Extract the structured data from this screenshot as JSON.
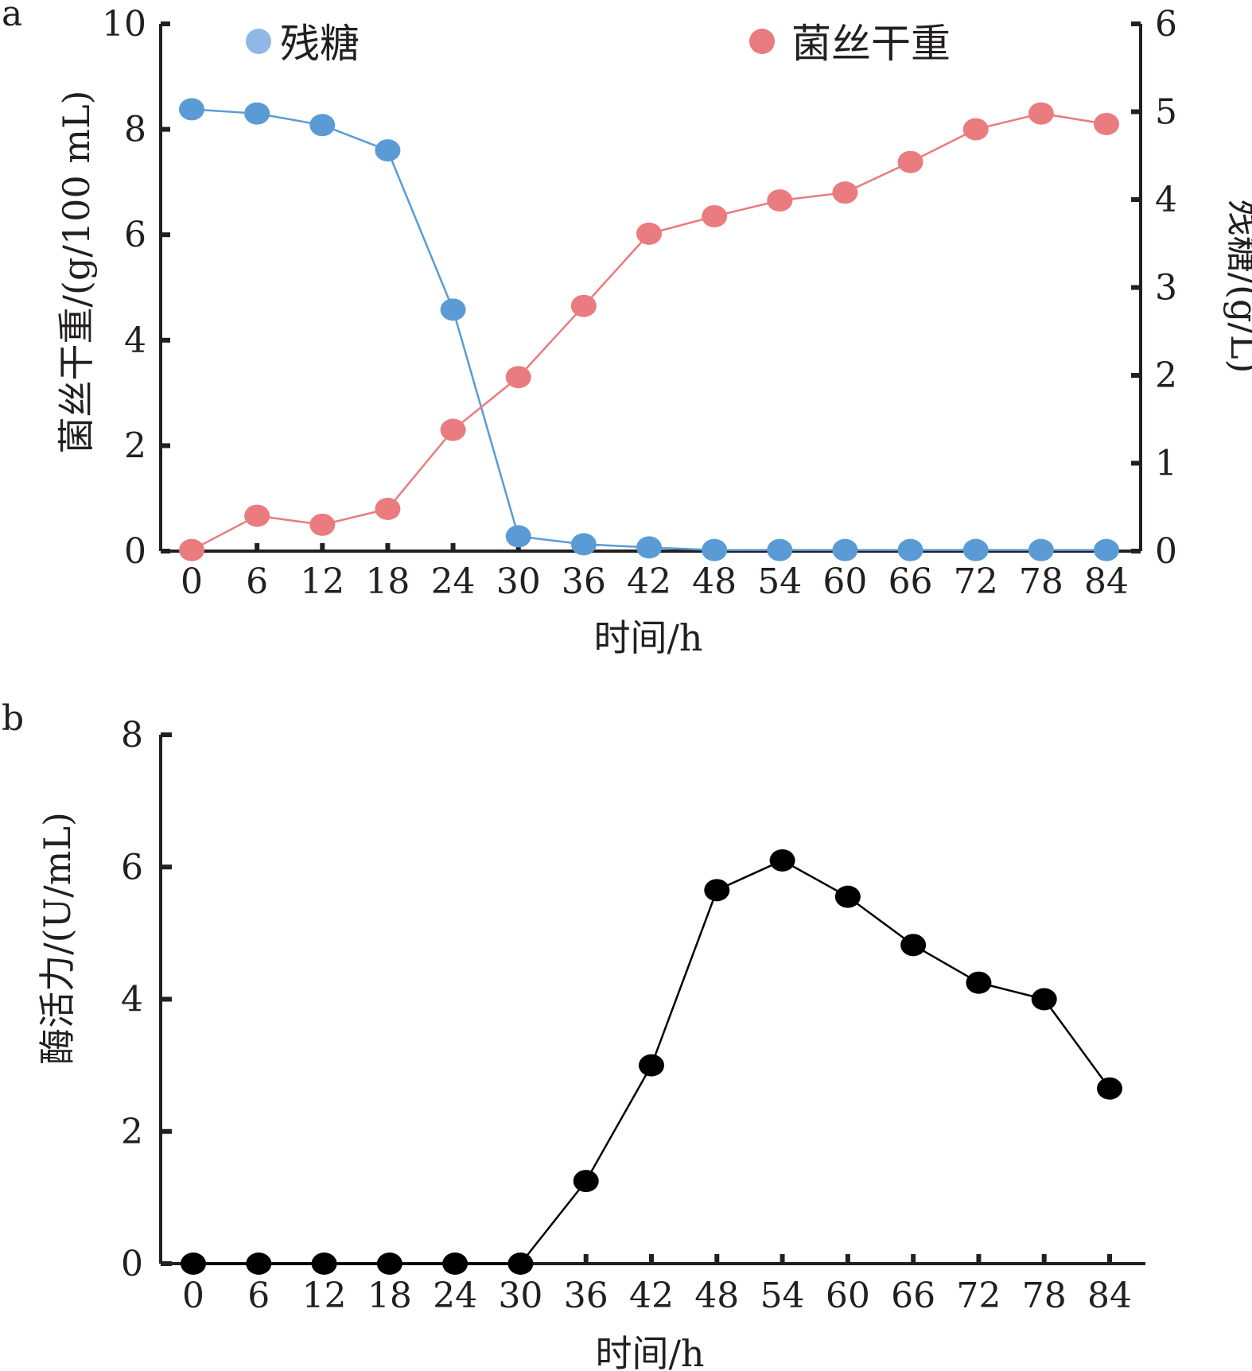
{
  "figure": {
    "panel_a_label": "a",
    "panel_b_label": "b"
  },
  "colors": {
    "sugar": "#5b9bd5",
    "sugar_legend": "#8fb8e6",
    "biomass": "#ea7b7e",
    "activity": "#000000",
    "axis": "#231f20"
  },
  "chart_data": [
    {
      "panel": "a",
      "type": "line",
      "x": [
        0,
        6,
        12,
        18,
        24,
        30,
        36,
        42,
        48,
        54,
        60,
        66,
        72,
        78,
        84
      ],
      "xlabel": "时间/h",
      "xticks": [
        "0",
        "6",
        "12",
        "18",
        "24",
        "30",
        "36",
        "42",
        "48",
        "54",
        "60",
        "66",
        "72",
        "78",
        "84"
      ],
      "ylabel_left": "菌丝干重/(g/100 mL)",
      "ylim_left": [
        0,
        10
      ],
      "yticks_left": [
        "0",
        "2",
        "4",
        "6",
        "8",
        "10"
      ],
      "ylabel_right": "残糖/(g/L)",
      "ylim_right": [
        0,
        6
      ],
      "yticks_right": [
        "0",
        "1",
        "2",
        "3",
        "4",
        "5",
        "6"
      ],
      "legend_position": "top",
      "series": [
        {
          "name": "残糖",
          "axis": "left",
          "color": "sugar",
          "values": [
            8.38,
            8.3,
            8.08,
            7.6,
            4.58,
            0.28,
            0.13,
            0.07,
            0.02,
            0.02,
            0.02,
            0.02,
            0.02,
            0.02,
            0.02
          ]
        },
        {
          "name": "菌丝干重",
          "axis": "left",
          "color": "biomass",
          "values": [
            0.02,
            0.67,
            0.5,
            0.8,
            2.3,
            3.3,
            4.65,
            6.02,
            6.35,
            6.65,
            6.8,
            7.38,
            8.0,
            8.3,
            8.1
          ]
        }
      ]
    },
    {
      "panel": "b",
      "type": "line",
      "x": [
        0,
        6,
        12,
        18,
        24,
        30,
        36,
        42,
        48,
        54,
        60,
        66,
        72,
        78,
        84
      ],
      "xlabel": "时间/h",
      "xticks": [
        "0",
        "6",
        "12",
        "18",
        "24",
        "30",
        "36",
        "42",
        "48",
        "54",
        "60",
        "66",
        "72",
        "78",
        "84"
      ],
      "ylabel": "酶活力/(U/mL)",
      "ylim": [
        0,
        8
      ],
      "yticks": [
        "0",
        "2",
        "4",
        "6",
        "8"
      ],
      "series": [
        {
          "color": "activity",
          "values": [
            0,
            0,
            0,
            0,
            0,
            0,
            1.25,
            3.0,
            5.65,
            6.1,
            5.55,
            4.82,
            4.25,
            4.0,
            2.65
          ]
        }
      ]
    }
  ]
}
